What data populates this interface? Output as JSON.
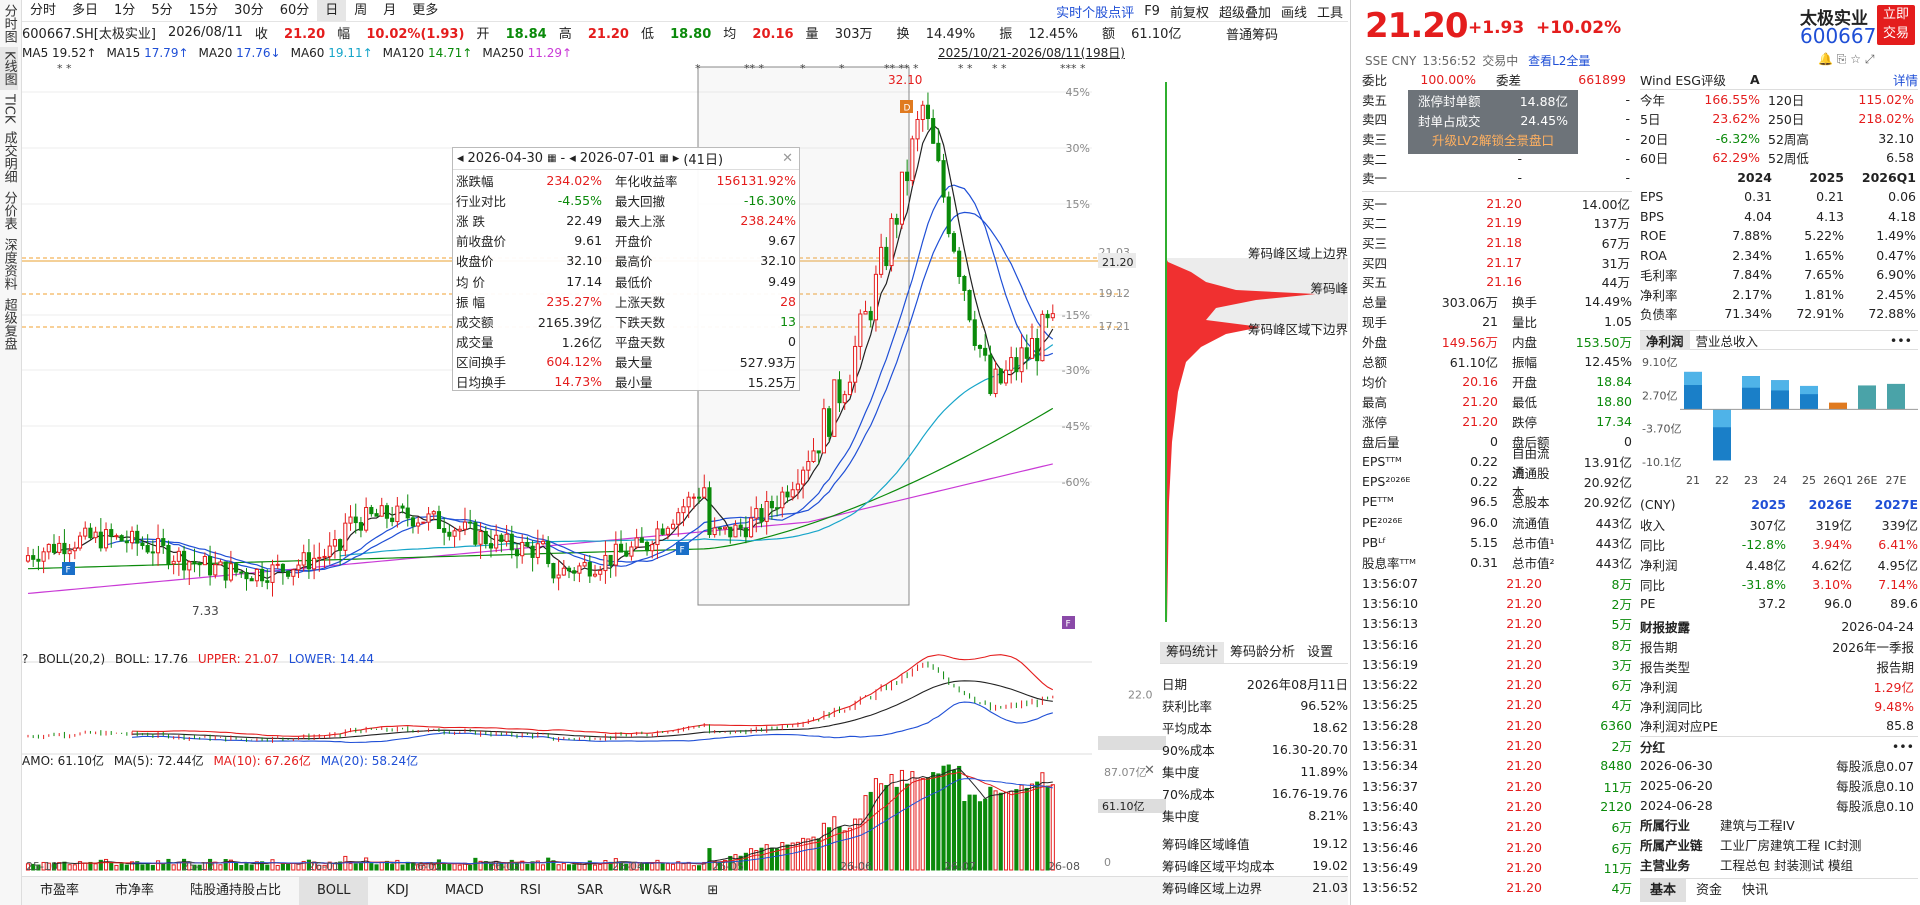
{
  "periods": [
    "分时",
    "多日",
    "1分",
    "5分",
    "15分",
    "30分",
    "60分",
    "日",
    "周",
    "月",
    "更多"
  ],
  "active_period": "日",
  "left_nav": [
    "分时图",
    "K线图",
    "TICK",
    "成交明细",
    "分价表",
    "深度资料",
    "超级复盘"
  ],
  "top_right": [
    "实时个股点评",
    "F9",
    "前复权",
    "超级叠加",
    "画线",
    "工具"
  ],
  "quote": {
    "code": "600667.SH[太极实业]",
    "date": "2026/08/11",
    "close_l": "收",
    "close": "21.20",
    "chg_l": "幅",
    "chg": "10.02%(1.93)",
    "open_l": "开",
    "open": "18.84",
    "high_l": "高",
    "high": "21.20",
    "low_l": "低",
    "low": "18.80",
    "avg_l": "均",
    "avg": "20.16",
    "vol_l": "量",
    "vol": "303万",
    "turn_l": "换",
    "turn": "14.49%",
    "amp_l": "振",
    "amp": "12.45%",
    "amt_l": "额",
    "amt": "61.10亿"
  },
  "ma": [
    {
      "k": "MA5",
      "v": "19.52↑",
      "c": "#222"
    },
    {
      "k": "MA15",
      "v": "17.79↑",
      "c": "#1f4fd6"
    },
    {
      "k": "MA20",
      "v": "17.76↓",
      "c": "#1f4fd6"
    },
    {
      "k": "MA60",
      "v": "19.11↑",
      "c": "#17a5c9"
    },
    {
      "k": "MA120",
      "v": "14.71↑",
      "c": "#0b8a0b"
    },
    {
      "k": "MA250",
      "v": "11.29↑",
      "c": "#c93ad6"
    }
  ],
  "range": "2025/10/21-2026/08/11(198日)",
  "chip_title": "普通筹码",
  "pct_labels": [
    "45%",
    "30%",
    "15%",
    "-15%",
    "-30%",
    "-45%",
    "-60%"
  ],
  "price_labels": [
    "21.03",
    "21.20",
    "19.12",
    "17.21"
  ],
  "chip_marks": [
    "筹码峰区域上边界",
    "筹码峰",
    "筹码峰区域下边界"
  ],
  "chart_labels": {
    "peak": "32.10",
    "low": "7.33"
  },
  "x_labels": [
    "25-10",
    "25-12",
    "26-01",
    "26-02",
    "26-03",
    "26-04",
    "26-05",
    "26-06",
    "26-07",
    "26-08"
  ],
  "tooltip": {
    "start": "2026-04-30",
    "end": "2026-07-01",
    "days": "(41日)",
    "rows": [
      [
        "涨跌幅",
        "234.02%",
        "年化收益率",
        "156131.92%"
      ],
      [
        "行业对比",
        "-4.55%",
        "最大回撤",
        "-16.30%"
      ],
      [
        "涨  跌",
        "22.49",
        "最大上涨",
        "238.24%"
      ],
      [
        "前收盘价",
        "9.61",
        "开盘价",
        "9.67"
      ],
      [
        "收盘价",
        "32.10",
        "最高价",
        "32.10"
      ],
      [
        "均  价",
        "17.14",
        "最低价",
        "9.49"
      ],
      [
        "振  幅",
        "235.27%",
        "上涨天数",
        "28"
      ],
      [
        "成交额",
        "2165.39亿",
        "下跌天数",
        "13"
      ],
      [
        "成交量",
        "1.26亿",
        "平盘天数",
        "0"
      ],
      [
        "区间换手",
        "604.12%",
        "最大量",
        "527.93万"
      ],
      [
        "日均换手",
        "14.73%",
        "最小量",
        "15.25万"
      ]
    ]
  },
  "boll": {
    "name": "BOLL(20,2)",
    "mid": "BOLL: 17.76",
    "upper": "UPPER: 21.07",
    "lower": "LOWER: 14.44",
    "axis": "22.0"
  },
  "amo": {
    "name": "AMO: 61.10亿",
    "ma5": "MA(5): 72.44亿",
    "ma10": "MA(10): 67.26亿",
    "ma20": "MA(20): 58.24亿",
    "axis_top": "87.07亿",
    "axis_cur": "61.10亿",
    "axis_zero": "0"
  },
  "bottom_tabs": [
    "市盈率",
    "市净率",
    "陆股通持股占比",
    "BOLL",
    "KDJ",
    "MACD",
    "RSI",
    "SAR",
    "W&R",
    "⊞"
  ],
  "chip_tabs": [
    "筹码统计",
    "筹码龄分析",
    "设置"
  ],
  "chip_stats": [
    [
      "日期",
      "2026年08月11日"
    ],
    [
      "获利比率",
      "96.52%"
    ],
    [
      "平均成本",
      "18.62"
    ],
    [
      "90%成本",
      "16.30-20.70"
    ],
    [
      "集中度",
      "11.89%"
    ],
    [
      "70%成本",
      "16.76-19.76"
    ],
    [
      "集中度",
      "8.21%"
    ],
    [
      "",
      ""
    ],
    [
      "筹码峰区域峰值",
      "19.12"
    ],
    [
      "筹码峰区域平均成本",
      "19.02"
    ],
    [
      "筹码峰区域上边界",
      "21.03"
    ]
  ],
  "header": {
    "price": "21.20",
    "change": "+1.93",
    "pct": "+10.02%",
    "name": "太极实业",
    "code": "600667",
    "trade": "立即交易",
    "exch": "SSE CNY",
    "time": "13:56:52",
    "status": "交易中",
    "l2": "查看L2全量"
  },
  "ob_top": [
    [
      "委比",
      "100.00%",
      "委差",
      "661899"
    ]
  ],
  "asks": [
    [
      "卖五",
      "-",
      "-"
    ],
    [
      "卖四",
      "-",
      "-"
    ],
    [
      "卖三",
      "-",
      "-"
    ],
    [
      "卖二",
      "-",
      "-"
    ],
    [
      "卖一",
      "-",
      "-"
    ]
  ],
  "bids": [
    [
      "买一",
      "21.20",
      "14.00亿"
    ],
    [
      "买二",
      "21.19",
      "137万"
    ],
    [
      "买三",
      "21.18",
      "67万"
    ],
    [
      "买四",
      "21.17",
      "31万"
    ],
    [
      "买五",
      "21.16",
      "44万"
    ]
  ],
  "seal": {
    "a_l": "涨停封单额",
    "a_v": "14.88亿",
    "b_l": "封单占成交",
    "b_v": "24.45%",
    "upgrade": "升级LV2解锁全景盘口"
  },
  "stats": [
    [
      "总量",
      "303.06万",
      "换手",
      "14.49%"
    ],
    [
      "现手",
      "21",
      "量比",
      "1.05"
    ],
    [
      "外盘",
      "149.56万",
      "内盘",
      "153.50万"
    ],
    [
      "总额",
      "61.10亿",
      "振幅",
      "12.45%"
    ],
    [
      "均价",
      "20.16",
      "开盘",
      "18.84"
    ],
    [
      "最高",
      "21.20",
      "最低",
      "18.80"
    ],
    [
      "涨停",
      "21.20",
      "跌停",
      "17.34"
    ],
    [
      "盘后量",
      "0",
      "盘后额",
      "0"
    ],
    [
      "EPSᵀᵀᴹ",
      "0.22",
      "自由流通",
      "13.91亿"
    ],
    [
      "EPS²⁰²⁶ᴱ",
      "0.22",
      "流通股本",
      "20.92亿"
    ],
    [
      "PEᵀᵀᴹ",
      "96.5",
      "总股本",
      "20.92亿"
    ],
    [
      "PE²⁰²⁶ᴱ",
      "96.0",
      "流通值",
      "443亿"
    ],
    [
      "PBᴸᶠ",
      "5.15",
      "总市值¹",
      "443亿"
    ],
    [
      "股息率ᵀᵀᴹ",
      "0.31",
      "总市值²",
      "443亿"
    ]
  ],
  "ticks": [
    [
      "13:56:07",
      "21.20",
      "8万"
    ],
    [
      "13:56:10",
      "21.20",
      "2万"
    ],
    [
      "13:56:13",
      "21.20",
      "5万"
    ],
    [
      "13:56:16",
      "21.20",
      "8万"
    ],
    [
      "13:56:19",
      "21.20",
      "3万"
    ],
    [
      "13:56:22",
      "21.20",
      "6万"
    ],
    [
      "13:56:25",
      "21.20",
      "4万"
    ],
    [
      "13:56:28",
      "21.20",
      "6360"
    ],
    [
      "13:56:31",
      "21.20",
      "2万"
    ],
    [
      "13:56:34",
      "21.20",
      "8480"
    ],
    [
      "13:56:37",
      "21.20",
      "11万"
    ],
    [
      "13:56:40",
      "21.20",
      "2120"
    ],
    [
      "13:56:43",
      "21.20",
      "6万"
    ],
    [
      "13:56:46",
      "21.20",
      "6万"
    ],
    [
      "13:56:49",
      "21.20",
      "11万"
    ],
    [
      "13:56:52",
      "21.20",
      "4万"
    ]
  ],
  "wind": {
    "label": "Wind ESG评级",
    "grade": "A",
    "detail": "详情"
  },
  "perf": [
    [
      "今年",
      "166.55%",
      "120日",
      "115.02%"
    ],
    [
      "5日",
      "23.62%",
      "250日",
      "218.02%"
    ],
    [
      "20日",
      "-6.32%",
      "52周高",
      "32.10"
    ],
    [
      "60日",
      "62.29%",
      "52周低",
      "6.58"
    ]
  ],
  "fin_years": [
    "",
    "2024",
    "2025",
    "2026Q1"
  ],
  "fin": [
    [
      "EPS",
      "0.31",
      "0.21",
      "0.06"
    ],
    [
      "BPS",
      "4.04",
      "4.13",
      "4.18"
    ],
    [
      "ROE",
      "7.88%",
      "5.22%",
      "1.49%"
    ],
    [
      "ROA",
      "2.34%",
      "1.65%",
      "0.47%"
    ],
    [
      "毛利率",
      "7.84%",
      "7.65%",
      "6.90%"
    ],
    [
      "净利率",
      "2.17%",
      "1.81%",
      "2.45%"
    ],
    [
      "负债率",
      "71.34%",
      "72.91%",
      "72.88%"
    ]
  ],
  "fin_tabs": [
    "净利润",
    "营业总收入",
    "•••"
  ],
  "bar_axis": [
    "9.10亿",
    "2.70亿",
    "-3.70亿",
    "-10.1亿"
  ],
  "bar_x": [
    "21",
    "22",
    "23",
    "24",
    "25",
    "26Q1",
    "26E",
    "27E"
  ],
  "bar_data": {
    "type": "bar",
    "categories": [
      "21",
      "22",
      "23",
      "24",
      "25",
      "26Q1",
      "26E",
      "27E"
    ],
    "series": [
      {
        "values": [
          7.2,
          -9.8,
          6.4,
          5.6,
          4.5,
          1.3,
          4.6,
          4.9
        ]
      }
    ],
    "ylim": [
      -10.1,
      9.1
    ]
  },
  "fc_head": [
    "(CNY)",
    "2025",
    "2026E",
    "2027E"
  ],
  "fc": [
    [
      "收入",
      "307亿",
      "319亿",
      "339亿"
    ],
    [
      "同比",
      "-12.8%",
      "3.94%",
      "6.41%"
    ],
    [
      "净利润",
      "4.48亿",
      "4.62亿",
      "4.95亿"
    ],
    [
      "同比",
      "-31.8%",
      "3.10%",
      "7.14%"
    ],
    [
      "PE",
      "37.2",
      "96.0",
      "89.6"
    ]
  ],
  "report": [
    [
      "财报披露",
      "2026-04-24"
    ],
    [
      "报告期",
      "2026年一季报"
    ],
    [
      "报告类型",
      "报告期"
    ],
    [
      "净利润",
      "1.29亿"
    ],
    [
      "净利润同比",
      "9.48%"
    ],
    [
      "净利润对应PE",
      "85.8"
    ]
  ],
  "div_title": "分红",
  "div": [
    [
      "2026-06-30",
      "每股派息0.07"
    ],
    [
      "2025-06-20",
      "每股派息0.10"
    ],
    [
      "2024-06-28",
      "每股派息0.10"
    ]
  ],
  "industry": [
    [
      "所属行业",
      "建筑与工程IV"
    ],
    [
      "所属产业链",
      "工业厂房建筑工程  IC封测"
    ],
    [
      "主营业务",
      "工程总包  封装测试  模组"
    ]
  ],
  "rb_tabs": [
    "基本",
    "资金",
    "快讯"
  ]
}
